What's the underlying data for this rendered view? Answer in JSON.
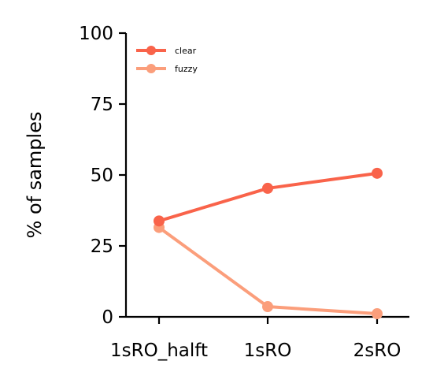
{
  "chart_data": {
    "type": "line",
    "title": "",
    "xlabel": "",
    "ylabel": "% of samples",
    "categories": [
      "1sRO_halft",
      "1sRO",
      "2sRO"
    ],
    "ylim": [
      0,
      100
    ],
    "yticks": [
      0,
      25,
      50,
      75,
      100
    ],
    "grid": false,
    "legend_position": "top-left",
    "series": [
      {
        "name": "clear",
        "color": "#f9634a",
        "values": [
          33.8,
          45.3,
          50.6
        ]
      },
      {
        "name": "fuzzy",
        "color": "#fb9e7b",
        "values": [
          31.5,
          3.6,
          1.1
        ]
      }
    ]
  }
}
